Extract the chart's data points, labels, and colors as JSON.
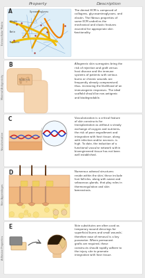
{
  "title_left": "Property",
  "title_right": "Description",
  "bg_color": "#ebebeb",
  "panel_bg": "#ffffff",
  "sections": [
    {
      "label": "A",
      "side_label": "Extracellular Matrix",
      "description": "The dermal ECM is composed of\ncollagens, glycosaminoglycans, and\nelastin. The fibrous properties of\nsome ECM underlies the\nmechanical and elastic features\nessential for appropriate skin\nfunctionality."
    },
    {
      "label": "B",
      "side_label": "Minimal Antigenicity",
      "description": "Allogeneic skin surrogates bring the\nrisk of rejection and graft versus\nhost disease and the immune\nsystems of patients with serious\nburns or chronic wounds are\nfrequently already compromised;\nthus, increasing the likelihood of an\nimmunogenic responses. The ideal\nscaffold should be non-antigenic\nand biodegradable."
    },
    {
      "label": "C",
      "side_label": "Vascularisation",
      "description": "Vascularization is a critical feature\nof skin constructs for\ntransplantation as without a steady\nexchange of oxygen and nutrients,\nthe risk of poor engraftment and\nintegration with host tissue, along\nwith infection and/or necrosis, is\nhigh. To date, the induction of a\nfunctional vascular network within\nbioengineered tissue has not been\nwell established."
    },
    {
      "label": "D",
      "side_label": "Skin Appendages",
      "description": "Numerous adnexal structures\nreside within the skin; these include\nhair follicles, along with sweat and\nsebaceous glands, that play roles in\nthermoregulation and skin\nhomeostasis."
    },
    {
      "label": "E",
      "side_label": "Adhesive Properties",
      "description": "Skin substitutes are often used as\ntemporary wound dressings for\nsuperficial burns and small wounds;\ntherefore ease of removal is a key\nparameter. Where permanent\ngrafts are required, these\nconstructs should rapidly adhere to\nthe injury site to promote\nintegration with host tissue."
    }
  ]
}
